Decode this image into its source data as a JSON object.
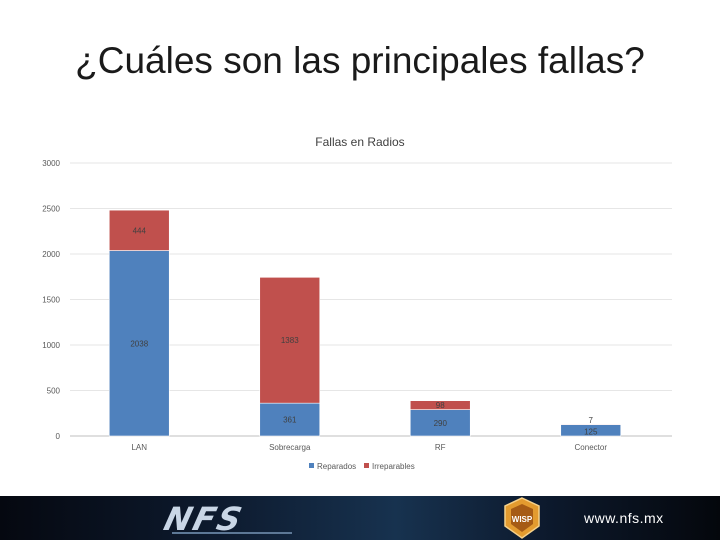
{
  "slide": {
    "title": "¿Cuáles son las principales fallas?"
  },
  "footer": {
    "logo_text": "NFS",
    "badge_text": "WISP",
    "url": "www.nfs.mx"
  },
  "colors": {
    "reparados": "#4f81bd",
    "irreparables": "#c0504d",
    "grid": "#e6e6e6",
    "axis_text": "#595959"
  },
  "chart_data": {
    "type": "bar",
    "stacked": true,
    "title": "Fallas en Radios",
    "categories": [
      "LAN",
      "Sobrecarga",
      "RF",
      "Conector"
    ],
    "series": [
      {
        "name": "Reparados",
        "values": [
          2038,
          361,
          290,
          125
        ],
        "labels": [
          "2038",
          "361",
          "290",
          "125"
        ]
      },
      {
        "name": "Irreparables",
        "values": [
          444,
          1383,
          98,
          7
        ],
        "labels": [
          "444",
          "1383",
          "98",
          "7"
        ]
      }
    ],
    "ylim": [
      0,
      3000
    ],
    "yticks": [
      0,
      500,
      1000,
      1500,
      2000,
      2500,
      3000
    ],
    "grid": true,
    "legend": "bottom"
  }
}
